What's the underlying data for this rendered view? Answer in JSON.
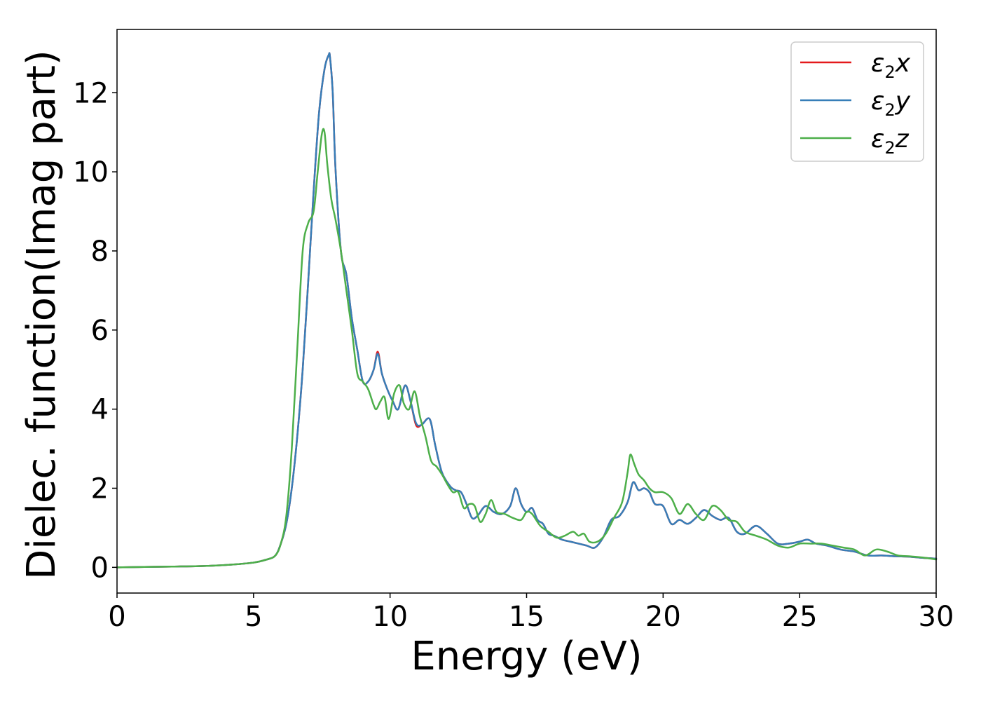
{
  "chart_data": {
    "type": "line",
    "xlabel": "Energy (eV)",
    "ylabel": "Dielec. function(Imag part)",
    "xlim": [
      0,
      30
    ],
    "ylim": [
      -0.65,
      13.6
    ],
    "xticks": [
      0,
      5,
      10,
      15,
      20,
      25,
      30
    ],
    "yticks": [
      0,
      2,
      4,
      6,
      8,
      10,
      12
    ],
    "grid": false,
    "legend_position": "top-right",
    "series": [
      {
        "name": "ε₂x",
        "legend": {
          "symbol": "ε",
          "sub": "2",
          "axis": "x"
        },
        "color": "#e41a1c",
        "x": [
          0,
          1,
          2,
          3,
          4,
          5,
          5.5,
          5.8,
          6.0,
          6.2,
          6.4,
          6.6,
          6.8,
          7.0,
          7.2,
          7.4,
          7.6,
          7.75,
          7.8,
          7.9,
          8.0,
          8.2,
          8.4,
          8.6,
          8.8,
          9.0,
          9.2,
          9.4,
          9.55,
          9.7,
          9.9,
          10.1,
          10.3,
          10.55,
          10.75,
          10.95,
          11.15,
          11.45,
          11.65,
          11.9,
          12.2,
          12.4,
          12.6,
          12.8,
          13.0,
          13.2,
          13.5,
          13.8,
          14.1,
          14.4,
          14.6,
          14.8,
          15.0,
          15.2,
          15.4,
          15.6,
          15.8,
          16.0,
          16.3,
          16.6,
          16.9,
          17.2,
          17.5,
          17.8,
          18.1,
          18.4,
          18.7,
          18.9,
          19.1,
          19.3,
          19.5,
          19.7,
          20.0,
          20.3,
          20.6,
          20.9,
          21.2,
          21.5,
          21.8,
          22.1,
          22.4,
          22.7,
          23.0,
          23.4,
          23.8,
          24.2,
          24.6,
          25.0,
          25.3,
          25.6,
          26.0,
          26.5,
          27.0,
          27.5,
          28.0,
          28.5,
          29.0,
          29.5,
          30
        ],
        "y": [
          0,
          0.01,
          0.02,
          0.03,
          0.06,
          0.12,
          0.2,
          0.3,
          0.6,
          1.1,
          2.0,
          3.3,
          5.0,
          7.2,
          9.5,
          11.5,
          12.6,
          12.95,
          12.9,
          12.0,
          10.1,
          8.0,
          7.4,
          6.3,
          5.5,
          4.7,
          4.7,
          5.0,
          5.45,
          4.9,
          4.5,
          4.2,
          4.0,
          4.6,
          4.2,
          3.6,
          3.6,
          3.75,
          3.1,
          2.4,
          2.05,
          1.95,
          1.9,
          1.6,
          1.25,
          1.3,
          1.55,
          1.4,
          1.35,
          1.55,
          2.0,
          1.6,
          1.4,
          1.5,
          1.2,
          1.1,
          0.85,
          0.8,
          0.7,
          0.65,
          0.6,
          0.55,
          0.5,
          0.75,
          1.2,
          1.3,
          1.65,
          2.15,
          1.95,
          2.0,
          1.9,
          1.6,
          1.55,
          1.1,
          1.2,
          1.1,
          1.25,
          1.45,
          1.3,
          1.2,
          1.25,
          0.9,
          0.85,
          1.05,
          0.85,
          0.6,
          0.6,
          0.65,
          0.7,
          0.6,
          0.55,
          0.45,
          0.4,
          0.3,
          0.3,
          0.28,
          0.27,
          0.24,
          0.22
        ]
      },
      {
        "name": "ε₂y",
        "legend": {
          "symbol": "ε",
          "sub": "2",
          "axis": "y"
        },
        "color": "#377eb8",
        "x": [
          0,
          1,
          2,
          3,
          4,
          5,
          5.5,
          5.8,
          6.0,
          6.2,
          6.4,
          6.6,
          6.8,
          7.0,
          7.2,
          7.4,
          7.6,
          7.75,
          7.8,
          7.9,
          8.0,
          8.2,
          8.4,
          8.6,
          8.8,
          9.0,
          9.2,
          9.4,
          9.55,
          9.7,
          9.9,
          10.1,
          10.3,
          10.55,
          10.75,
          10.95,
          11.15,
          11.45,
          11.65,
          11.9,
          12.2,
          12.4,
          12.6,
          12.8,
          13.0,
          13.2,
          13.5,
          13.8,
          14.1,
          14.4,
          14.6,
          14.8,
          15.0,
          15.2,
          15.4,
          15.6,
          15.8,
          16.0,
          16.3,
          16.6,
          16.9,
          17.2,
          17.5,
          17.8,
          18.1,
          18.4,
          18.7,
          18.9,
          19.1,
          19.3,
          19.5,
          19.7,
          20.0,
          20.3,
          20.6,
          20.9,
          21.2,
          21.5,
          21.8,
          22.1,
          22.4,
          22.7,
          23.0,
          23.4,
          23.8,
          24.2,
          24.6,
          25.0,
          25.3,
          25.6,
          26.0,
          26.5,
          27.0,
          27.5,
          28.0,
          28.5,
          29.0,
          29.5,
          30
        ],
        "y": [
          0,
          0.01,
          0.02,
          0.03,
          0.06,
          0.12,
          0.2,
          0.3,
          0.6,
          1.1,
          2.0,
          3.3,
          5.0,
          7.2,
          9.5,
          11.5,
          12.6,
          12.95,
          12.9,
          12.0,
          10.1,
          8.0,
          7.4,
          6.3,
          5.5,
          4.7,
          4.7,
          5.0,
          5.4,
          4.9,
          4.5,
          4.2,
          4.0,
          4.6,
          4.2,
          3.65,
          3.6,
          3.75,
          3.1,
          2.4,
          2.05,
          1.95,
          1.9,
          1.6,
          1.25,
          1.3,
          1.55,
          1.4,
          1.35,
          1.55,
          2.0,
          1.6,
          1.4,
          1.5,
          1.2,
          1.1,
          0.85,
          0.8,
          0.7,
          0.65,
          0.6,
          0.55,
          0.5,
          0.75,
          1.2,
          1.3,
          1.65,
          2.15,
          1.95,
          2.0,
          1.9,
          1.6,
          1.55,
          1.1,
          1.2,
          1.1,
          1.25,
          1.45,
          1.3,
          1.2,
          1.25,
          0.9,
          0.85,
          1.05,
          0.85,
          0.6,
          0.6,
          0.65,
          0.7,
          0.6,
          0.55,
          0.45,
          0.4,
          0.3,
          0.3,
          0.28,
          0.27,
          0.24,
          0.22
        ]
      },
      {
        "name": "ε₂z",
        "legend": {
          "symbol": "ε",
          "sub": "2",
          "axis": "z"
        },
        "color": "#4daf4a",
        "x": [
          0,
          1,
          2,
          3,
          4,
          5,
          5.5,
          5.8,
          6.0,
          6.2,
          6.4,
          6.6,
          6.8,
          7.0,
          7.2,
          7.35,
          7.5,
          7.6,
          7.7,
          7.85,
          8.0,
          8.2,
          8.4,
          8.6,
          8.8,
          9.0,
          9.2,
          9.4,
          9.5,
          9.65,
          9.8,
          9.95,
          10.15,
          10.35,
          10.5,
          10.7,
          10.9,
          11.1,
          11.3,
          11.5,
          11.7,
          11.9,
          12.1,
          12.3,
          12.5,
          12.7,
          12.9,
          13.1,
          13.3,
          13.5,
          13.7,
          13.9,
          14.2,
          14.5,
          14.8,
          15.0,
          15.2,
          15.5,
          15.8,
          16.1,
          16.4,
          16.7,
          16.9,
          17.1,
          17.3,
          17.6,
          17.9,
          18.2,
          18.5,
          18.7,
          18.8,
          18.95,
          19.1,
          19.3,
          19.5,
          19.7,
          20.0,
          20.3,
          20.6,
          20.9,
          21.2,
          21.5,
          21.8,
          22.1,
          22.4,
          22.7,
          23.0,
          23.4,
          23.8,
          24.2,
          24.6,
          25.0,
          25.4,
          25.8,
          26.2,
          26.6,
          27.0,
          27.4,
          27.8,
          28.2,
          28.6,
          29.0,
          29.5,
          30
        ],
        "y": [
          0,
          0.01,
          0.02,
          0.03,
          0.06,
          0.12,
          0.2,
          0.3,
          0.6,
          1.3,
          3.0,
          5.5,
          8.0,
          8.7,
          9.0,
          10.0,
          10.95,
          11.0,
          10.2,
          9.3,
          8.8,
          8.0,
          7.0,
          6.0,
          4.9,
          4.7,
          4.5,
          4.1,
          4.0,
          4.2,
          4.3,
          3.75,
          4.4,
          4.6,
          4.15,
          4.0,
          4.45,
          3.8,
          3.3,
          2.7,
          2.55,
          2.35,
          2.1,
          1.9,
          1.9,
          1.5,
          1.6,
          1.55,
          1.15,
          1.35,
          1.7,
          1.4,
          1.35,
          1.25,
          1.2,
          1.4,
          1.35,
          1.05,
          0.9,
          0.75,
          0.8,
          0.9,
          0.8,
          0.85,
          0.65,
          0.65,
          0.85,
          1.25,
          1.65,
          2.4,
          2.85,
          2.6,
          2.35,
          2.2,
          2.0,
          1.9,
          1.9,
          1.75,
          1.35,
          1.6,
          1.35,
          1.2,
          1.55,
          1.45,
          1.2,
          1.15,
          0.9,
          0.8,
          0.7,
          0.55,
          0.5,
          0.6,
          0.6,
          0.6,
          0.55,
          0.5,
          0.45,
          0.3,
          0.45,
          0.4,
          0.3,
          0.28,
          0.25,
          0.2
        ]
      }
    ]
  }
}
